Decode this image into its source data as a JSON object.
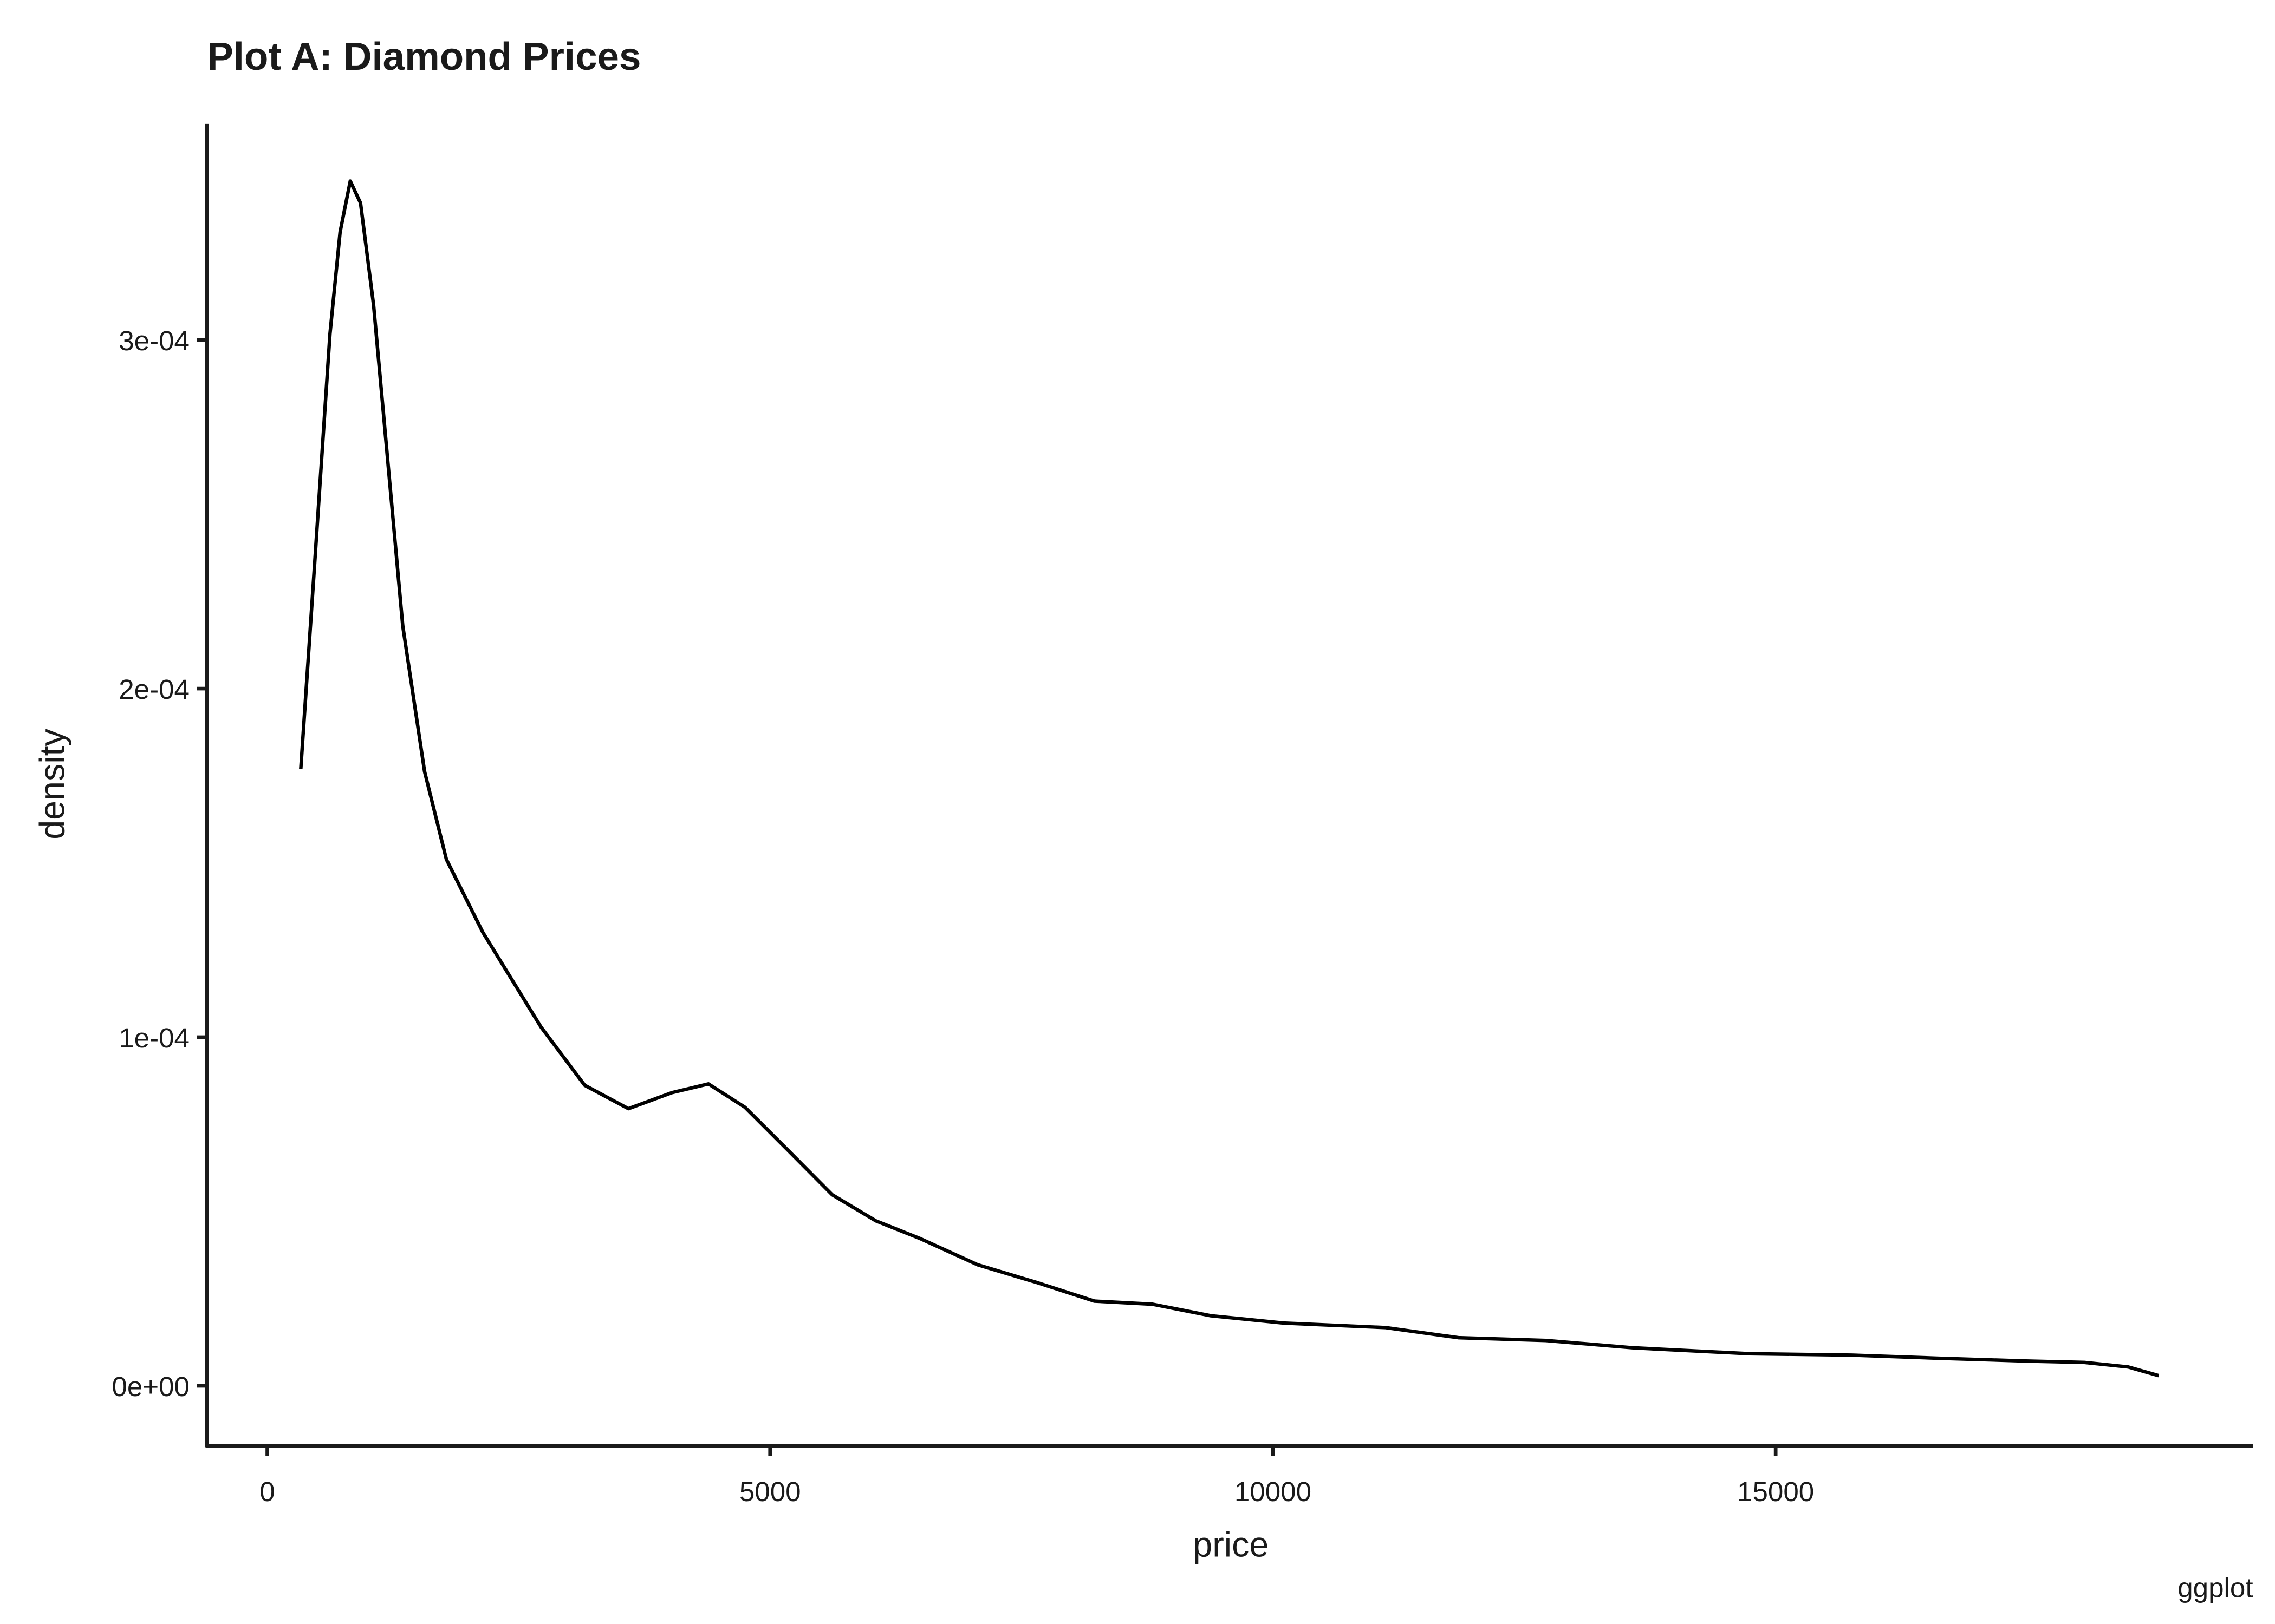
{
  "chart_data": {
    "type": "line",
    "title": "Plot A: Diamond Prices",
    "x_label": "price",
    "y_label": "density",
    "caption": "ggplot",
    "x": [
      333,
      478,
      623,
      724,
      825,
      927,
      1057,
      1202,
      1347,
      1564,
      1781,
      2143,
      2722,
      3157,
      3591,
      4025,
      4387,
      4750,
      5184,
      5618,
      6053,
      6487,
      7066,
      7645,
      8225,
      8804,
      9383,
      10107,
      11121,
      11845,
      12714,
      13583,
      14741,
      15755,
      16623,
      17492,
      18071,
      18506,
      18810
    ],
    "values": [
      0.000177,
      0.0002389,
      0.0003017,
      0.000331,
      0.0003456,
      0.0003393,
      0.00031,
      0.000264,
      0.000218,
      0.0001762,
      0.000151,
      0.0001301,
      0.0001029,
      8.62e-05,
      7.95e-05,
      8.41e-05,
      8.66e-05,
      7.99e-05,
      6.74e-05,
      5.48e-05,
      4.73e-05,
      4.23e-05,
      3.47e-05,
      2.97e-05,
      2.43e-05,
      2.34e-05,
      2.01e-05,
      1.8e-05,
      1.67e-05,
      1.38e-05,
      1.3e-05,
      1.09e-05,
      9.2e-06,
      8.8e-06,
      7.9e-06,
      7.1e-06,
      6.7e-06,
      5.4e-06,
      2.9e-06
    ],
    "color": "#000000",
    "xlim": [
      -599,
      19748
    ],
    "xticks": [
      0,
      5000,
      10000,
      15000
    ],
    "ylim": [
      -1.72e-05,
      0.000362
    ],
    "yticks": [
      {
        "value": 0,
        "label": "0e+00"
      },
      {
        "value": 0.0001,
        "label": "1e-04"
      },
      {
        "value": 0.0002,
        "label": "2e-04"
      },
      {
        "value": 0.0003,
        "label": "3e-04"
      }
    ],
    "grid": false
  }
}
